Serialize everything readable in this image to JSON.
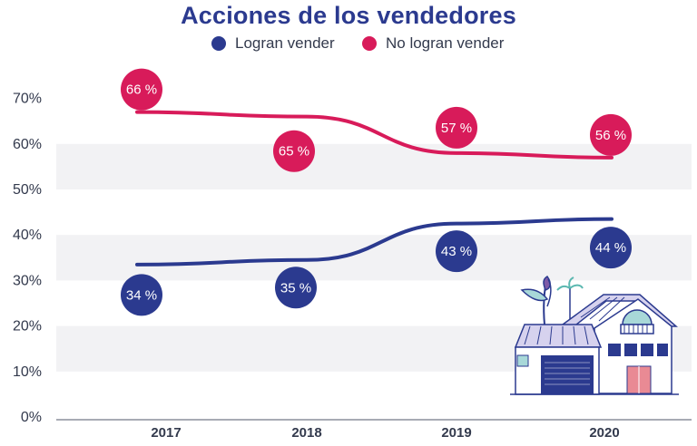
{
  "chart_data": {
    "type": "line",
    "title": "Acciones de los vendedores",
    "categories": [
      "2017",
      "2018",
      "2019",
      "2020"
    ],
    "series": [
      {
        "name": "Logran vender",
        "color": "#2b3a8f",
        "values": [
          34,
          35,
          43,
          44
        ],
        "labels": [
          "34 %",
          "35 %",
          "43 %",
          "44 %"
        ]
      },
      {
        "name": "No logran vender",
        "color": "#d81b5a",
        "values": [
          66,
          65,
          57,
          56
        ],
        "labels": [
          "66 %",
          "65 %",
          "57 %",
          "56 %"
        ]
      }
    ],
    "yticks": [
      "0%",
      "10%",
      "20%",
      "30%",
      "40%",
      "50%",
      "60%",
      "70%"
    ],
    "ylim": [
      0,
      70
    ],
    "xlabel": "",
    "ylabel": "",
    "grid": true,
    "legend_position": "top-center"
  }
}
